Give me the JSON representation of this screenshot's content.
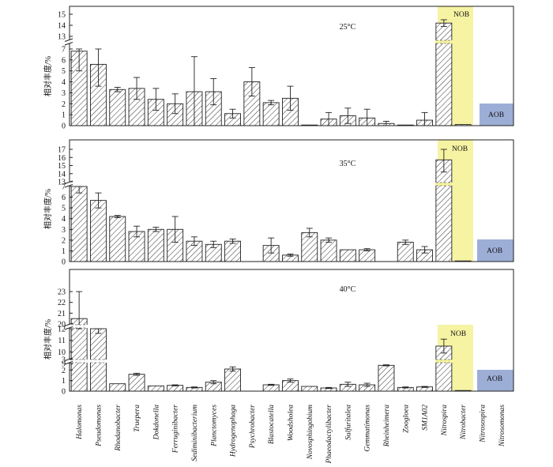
{
  "y_axis_label": "相对丰度/%",
  "categories": [
    "Halomonas",
    "Pseudomonas",
    "Rhodanobacter",
    "Truepera",
    "Dokdonella",
    "Ferruginibacter",
    "Sediminibacterium",
    "Planctomyces",
    "Hydrogenophaga",
    "Psychrobacter",
    "Blastocatella",
    "Woodsholea",
    "Novosphingobium",
    "Phaeodactylibacter",
    "Sulfuritalea",
    "Gemmatimonas",
    "Rheinheimera",
    "Zoogloea",
    "SM1A02",
    "Nitrospira",
    "Nitrobacter",
    "Nitrosospira",
    "Nitrosomonas"
  ],
  "group_labels": {
    "nob": "NOB",
    "aob": "AOB"
  },
  "colors": {
    "nob_band": "#f6f3a3",
    "aob_block": "#9daed6",
    "bar_stroke": "#222222"
  },
  "chart_data": [
    {
      "type": "bar",
      "title": "25°C",
      "ylabel": "相对丰度/%",
      "y_broken": true,
      "lower_ticks": [
        0,
        1,
        2,
        3,
        4,
        5,
        6,
        7
      ],
      "upper_ticks": [
        13,
        14,
        15
      ],
      "values": [
        6.8,
        5.6,
        3.3,
        3.4,
        2.4,
        2.0,
        3.1,
        3.1,
        1.1,
        4.0,
        2.1,
        2.5,
        0.05,
        0.6,
        0.9,
        0.7,
        0.2,
        0.05,
        0.5,
        14.2,
        0.1,
        1.85,
        1.85
      ],
      "errors": [
        1.8,
        2.0,
        0.2,
        1.0,
        1.0,
        0.9,
        3.2,
        1.2,
        0.4,
        1.3,
        0.2,
        1.1,
        0,
        0.6,
        0.7,
        0.8,
        0.2,
        0,
        0.7,
        0.3,
        0,
        0,
        0
      ]
    },
    {
      "type": "bar",
      "title": "35°C",
      "ylabel": "相对丰度/%",
      "y_broken": true,
      "lower_ticks": [
        0,
        1,
        2,
        3,
        4,
        5,
        6,
        7
      ],
      "upper_ticks": [
        13,
        14,
        15,
        16,
        17
      ],
      "values": [
        7.0,
        5.7,
        4.2,
        2.8,
        3.0,
        3.0,
        1.9,
        1.6,
        1.9,
        0,
        1.5,
        0.6,
        2.7,
        2.0,
        1.1,
        1.1,
        0,
        1.8,
        1.1,
        15.7,
        0.05,
        2.2,
        2.2
      ],
      "errors": [
        0.6,
        0.7,
        0.1,
        0.5,
        0.2,
        1.2,
        0.4,
        0.3,
        0.2,
        0,
        0.7,
        0.1,
        0.4,
        0.2,
        0,
        0.1,
        0,
        0.2,
        0.3,
        1.5,
        0,
        0,
        0
      ]
    },
    {
      "type": "bar",
      "title": "40°C",
      "ylabel": "相对丰度/%",
      "y_broken": true,
      "lower_ticks": [
        0,
        1,
        2,
        3
      ],
      "middle_ticks": [
        9,
        10,
        11,
        12
      ],
      "upper_ticks": [
        20,
        21,
        22,
        23
      ],
      "values": [
        20.5,
        12.4,
        0.7,
        1.6,
        0.5,
        0.55,
        0.35,
        0.85,
        2.1,
        0,
        0.6,
        1.0,
        0.45,
        0.3,
        0.65,
        0.6,
        2.45,
        0.35,
        0.4,
        10.5,
        0.05,
        2.4,
        2.4
      ],
      "errors": [
        2.8,
        0.8,
        0,
        0.1,
        0,
        0.05,
        0.05,
        0.15,
        0.2,
        0,
        0.05,
        0.15,
        0,
        0.05,
        0.2,
        0.15,
        0.05,
        0.05,
        0.05,
        0.6,
        0,
        0,
        0
      ]
    }
  ]
}
